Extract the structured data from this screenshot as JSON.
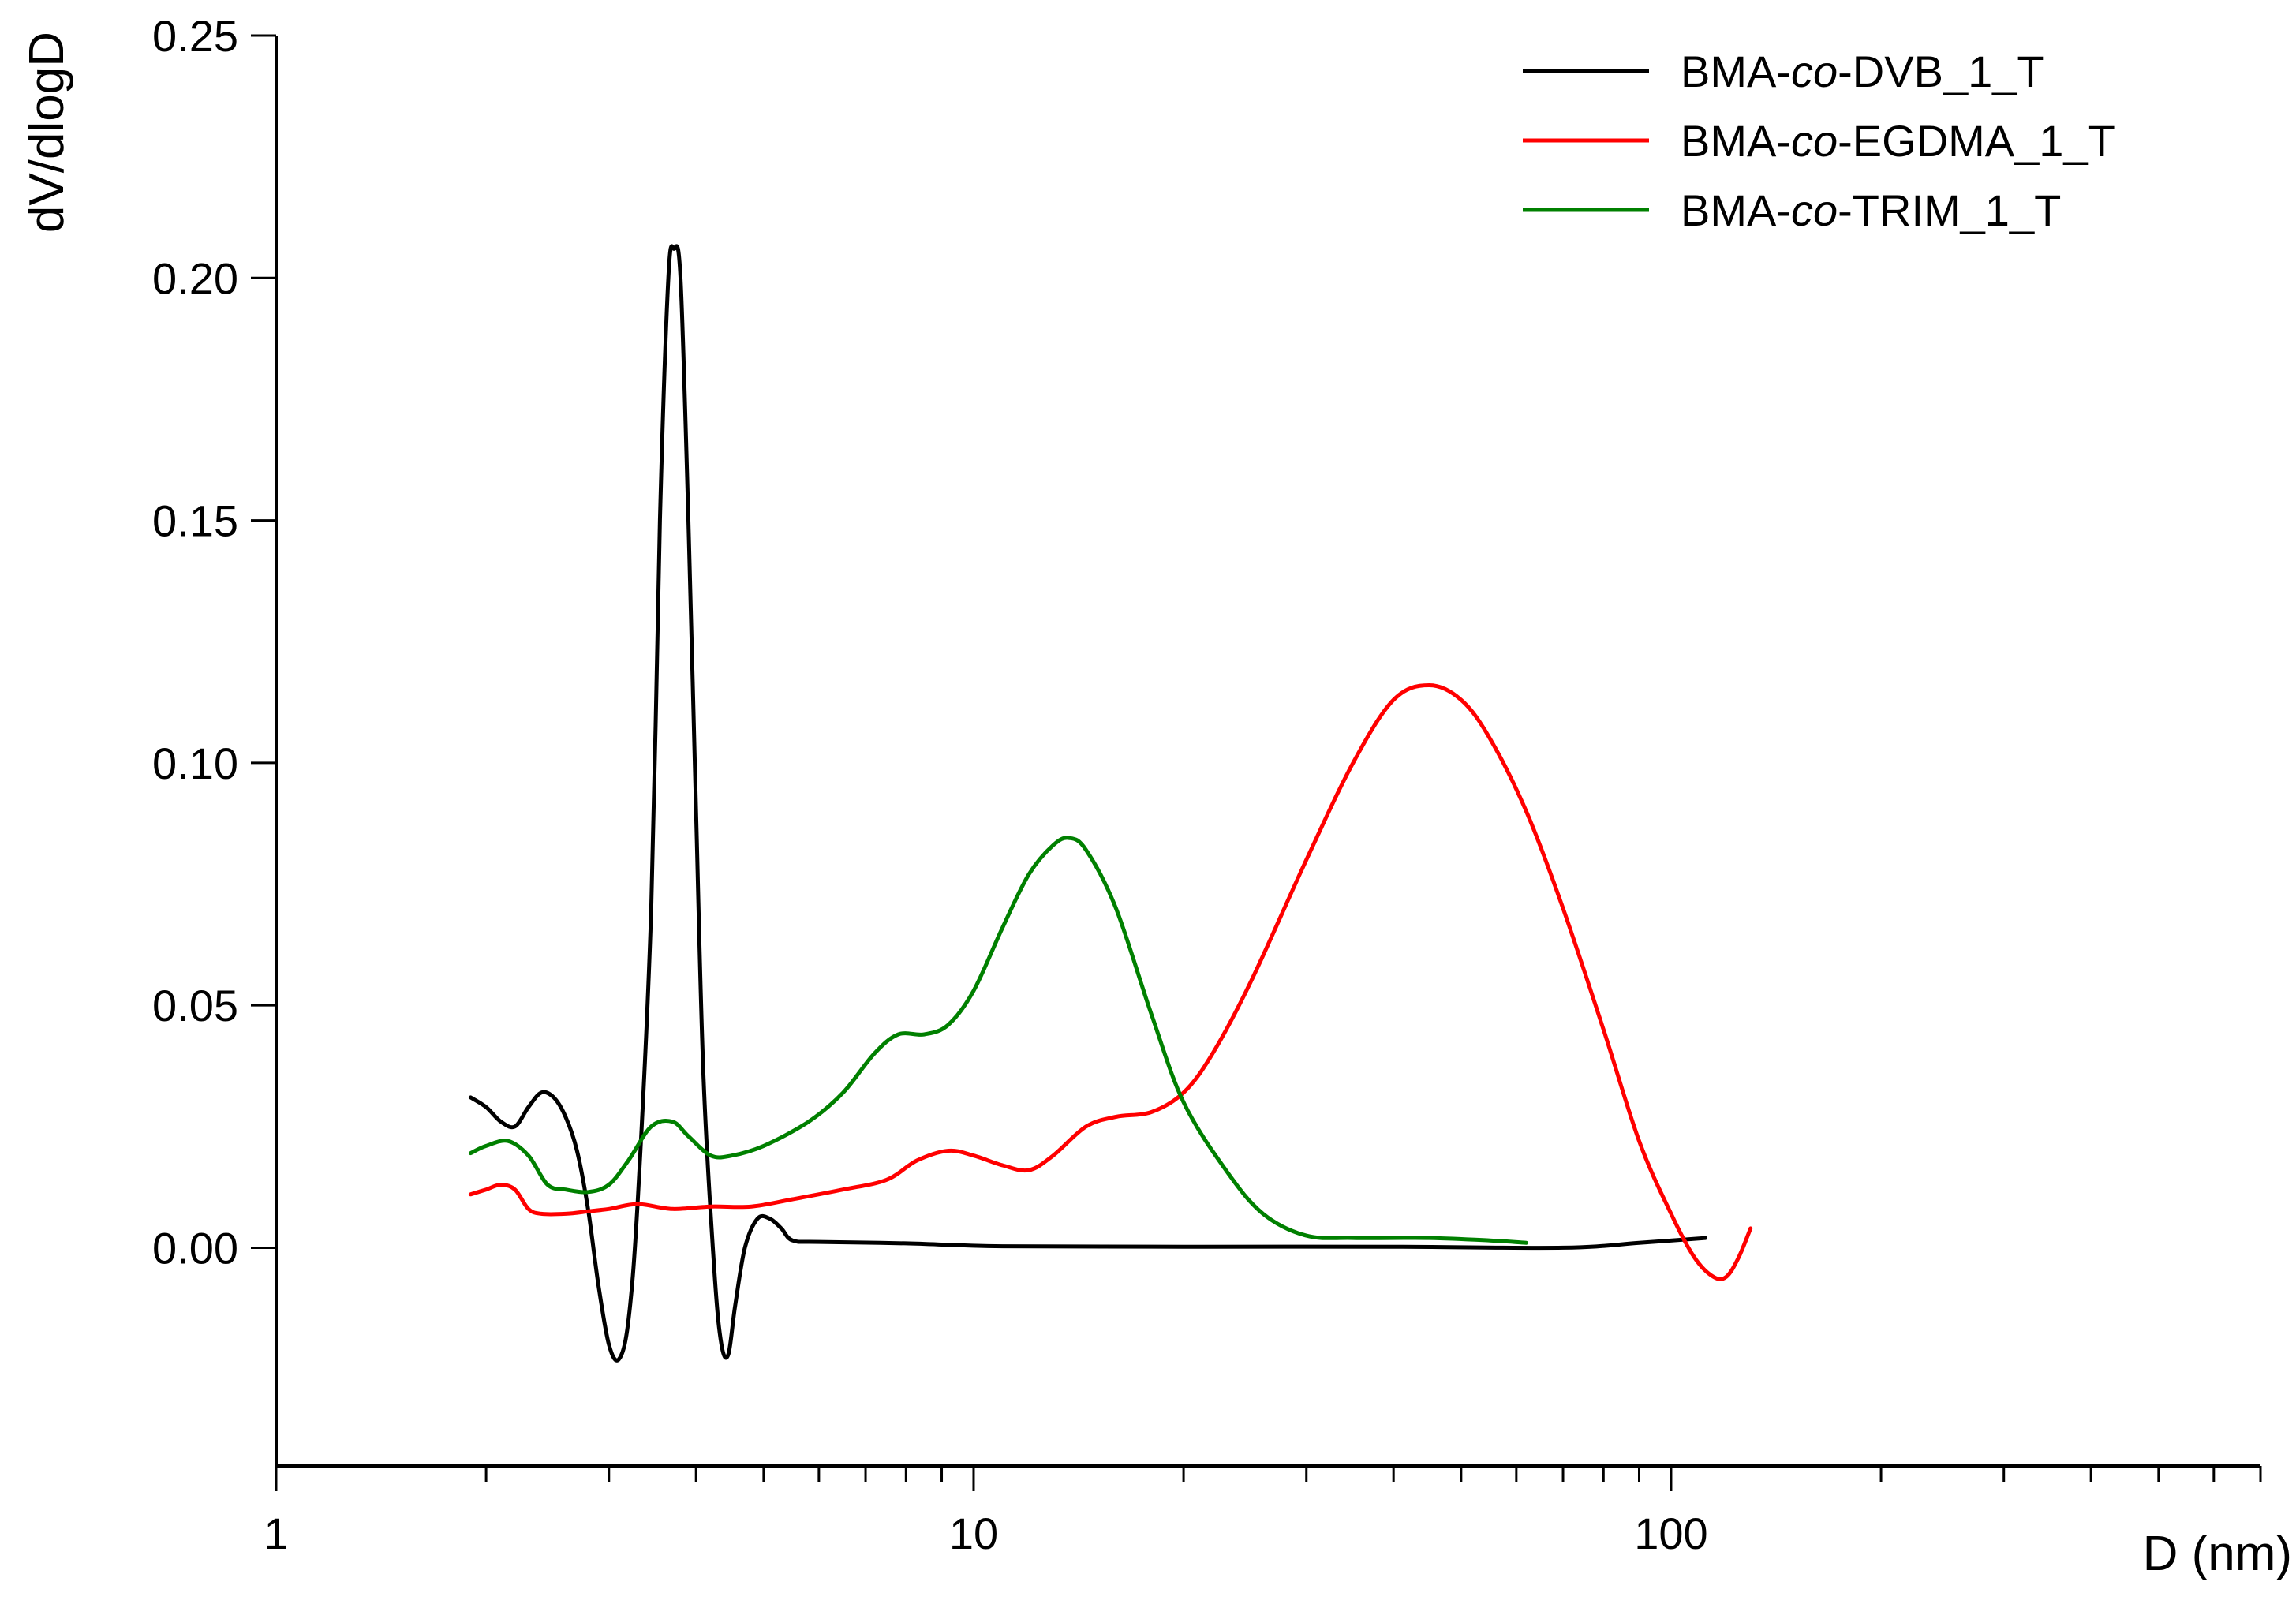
{
  "chart_data": {
    "type": "line",
    "xscale": "log",
    "xlabel": "D (nm)",
    "ylabel": "dV/dlogD",
    "xlim": [
      1,
      700
    ],
    "ylim": [
      -0.045,
      0.25
    ],
    "xticks": [
      {
        "value": 1,
        "label": "1"
      },
      {
        "value": 10,
        "label": "10"
      },
      {
        "value": 100,
        "label": "100"
      }
    ],
    "yticks": [
      {
        "value": 0.0,
        "label": "0.00"
      },
      {
        "value": 0.05,
        "label": "0.05"
      },
      {
        "value": 0.1,
        "label": "0.10"
      },
      {
        "value": 0.15,
        "label": "0.15"
      },
      {
        "value": 0.2,
        "label": "0.20"
      },
      {
        "value": 0.25,
        "label": "0.25"
      }
    ],
    "grid": false,
    "legend": "top-right",
    "series": [
      {
        "name_parts": [
          "BMA-",
          "co",
          "-DVB_1_T"
        ],
        "color": "#000000",
        "points": [
          [
            1.9,
            0.031
          ],
          [
            2.0,
            0.029
          ],
          [
            2.1,
            0.026
          ],
          [
            2.2,
            0.025
          ],
          [
            2.3,
            0.029
          ],
          [
            2.4,
            0.032
          ],
          [
            2.5,
            0.031
          ],
          [
            2.6,
            0.027
          ],
          [
            2.7,
            0.02
          ],
          [
            2.8,
            0.008
          ],
          [
            2.9,
            -0.008
          ],
          [
            3.0,
            -0.02
          ],
          [
            3.1,
            -0.023
          ],
          [
            3.2,
            -0.015
          ],
          [
            3.3,
            0.01
          ],
          [
            3.45,
            0.07
          ],
          [
            3.55,
            0.15
          ],
          [
            3.65,
            0.2
          ],
          [
            3.72,
            0.206
          ],
          [
            3.8,
            0.2
          ],
          [
            3.9,
            0.15
          ],
          [
            4.0,
            0.09
          ],
          [
            4.1,
            0.035
          ],
          [
            4.25,
            -0.005
          ],
          [
            4.35,
            -0.02
          ],
          [
            4.45,
            -0.022
          ],
          [
            4.55,
            -0.012
          ],
          [
            4.7,
            0.0
          ],
          [
            4.9,
            0.006
          ],
          [
            5.1,
            0.006
          ],
          [
            5.3,
            0.004
          ],
          [
            5.5,
            0.0015
          ],
          [
            6,
            0.0012
          ],
          [
            8,
            0.0009
          ],
          [
            11,
            0.0003
          ],
          [
            20,
            0.0002
          ],
          [
            40,
            0.0002
          ],
          [
            70,
            0.0
          ],
          [
            90,
            0.001
          ],
          [
            112,
            0.002
          ]
        ]
      },
      {
        "name_parts": [
          "BMA-",
          "co",
          "-EGDMA_1_T"
        ],
        "color": "#ff0000",
        "points": [
          [
            1.9,
            0.011
          ],
          [
            2.0,
            0.012
          ],
          [
            2.1,
            0.013
          ],
          [
            2.2,
            0.012
          ],
          [
            2.3,
            0.008
          ],
          [
            2.4,
            0.007
          ],
          [
            2.6,
            0.007
          ],
          [
            2.8,
            0.0075
          ],
          [
            3.0,
            0.008
          ],
          [
            3.3,
            0.009
          ],
          [
            3.7,
            0.008
          ],
          [
            4.2,
            0.0085
          ],
          [
            4.8,
            0.0085
          ],
          [
            5.5,
            0.01
          ],
          [
            6.5,
            0.012
          ],
          [
            7.5,
            0.014
          ],
          [
            8.3,
            0.018
          ],
          [
            9.2,
            0.02
          ],
          [
            10,
            0.019
          ],
          [
            11,
            0.017
          ],
          [
            12,
            0.016
          ],
          [
            13,
            0.019
          ],
          [
            14.5,
            0.025
          ],
          [
            16,
            0.027
          ],
          [
            18,
            0.028
          ],
          [
            20,
            0.032
          ],
          [
            22,
            0.04
          ],
          [
            25,
            0.055
          ],
          [
            30,
            0.08
          ],
          [
            35,
            0.1
          ],
          [
            40,
            0.113
          ],
          [
            45,
            0.116
          ],
          [
            50,
            0.113
          ],
          [
            55,
            0.105
          ],
          [
            62,
            0.09
          ],
          [
            70,
            0.07
          ],
          [
            80,
            0.045
          ],
          [
            90,
            0.022
          ],
          [
            100,
            0.007
          ],
          [
            108,
            -0.002
          ],
          [
            115,
            -0.006
          ],
          [
            120,
            -0.006
          ],
          [
            125,
            -0.002
          ],
          [
            130,
            0.004
          ]
        ]
      },
      {
        "name_parts": [
          "BMA-",
          "co",
          "-TRIM_1_T"
        ],
        "color": "#008000",
        "points": [
          [
            1.9,
            0.0195
          ],
          [
            2.0,
            0.021
          ],
          [
            2.15,
            0.022
          ],
          [
            2.3,
            0.019
          ],
          [
            2.45,
            0.013
          ],
          [
            2.6,
            0.012
          ],
          [
            2.8,
            0.0115
          ],
          [
            3.0,
            0.013
          ],
          [
            3.2,
            0.018
          ],
          [
            3.45,
            0.025
          ],
          [
            3.7,
            0.026
          ],
          [
            3.9,
            0.023
          ],
          [
            4.2,
            0.019
          ],
          [
            4.5,
            0.019
          ],
          [
            5.0,
            0.021
          ],
          [
            5.8,
            0.026
          ],
          [
            6.5,
            0.032
          ],
          [
            7.2,
            0.04
          ],
          [
            7.8,
            0.044
          ],
          [
            8.5,
            0.044
          ],
          [
            9.2,
            0.046
          ],
          [
            10,
            0.053
          ],
          [
            11,
            0.066
          ],
          [
            12,
            0.077
          ],
          [
            13,
            0.083
          ],
          [
            13.7,
            0.0845
          ],
          [
            14.5,
            0.082
          ],
          [
            16,
            0.07
          ],
          [
            18,
            0.048
          ],
          [
            20,
            0.03
          ],
          [
            23,
            0.016
          ],
          [
            26,
            0.007
          ],
          [
            30,
            0.0025
          ],
          [
            35,
            0.002
          ],
          [
            45,
            0.002
          ],
          [
            55,
            0.0015
          ],
          [
            62,
            0.001
          ]
        ]
      }
    ]
  }
}
